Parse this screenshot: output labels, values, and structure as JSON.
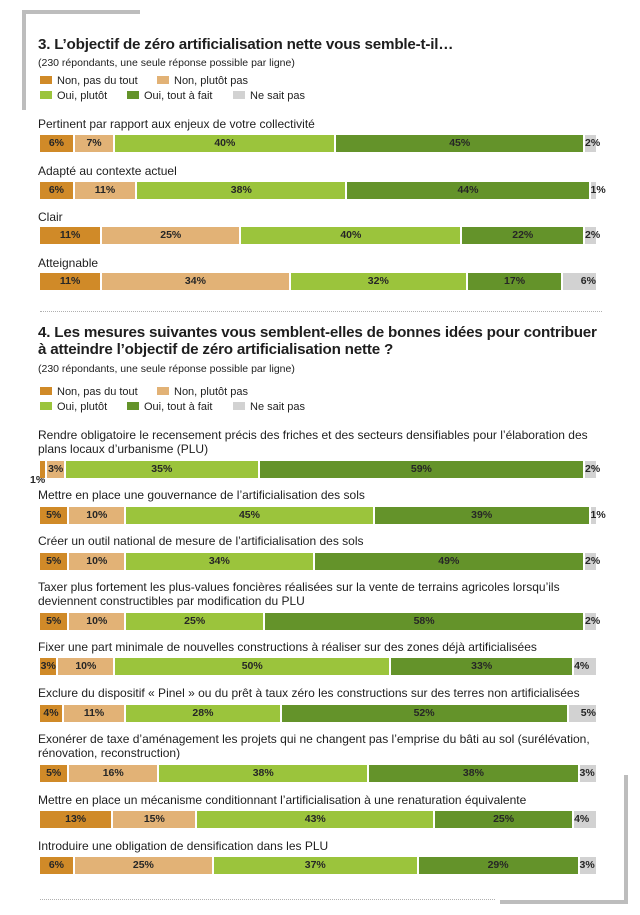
{
  "chart_data": [
    {
      "type": "bar",
      "orientation": "horizontal-stacked-100",
      "title": "3. L’objectif de zéro artificialisation nette vous semble-t-il…",
      "subtitle": "(230 répondants, une seule réponse possible par ligne)",
      "legend": [
        {
          "name": "Non, pas du tout",
          "color": "#d08a28"
        },
        {
          "name": "Non, plutôt pas",
          "color": "#e2b276"
        },
        {
          "name": "Oui, plutôt",
          "color": "#9bc43c"
        },
        {
          "name": "Oui, tout à fait",
          "color": "#64932a"
        },
        {
          "name": "Ne sait pas",
          "color": "#d2d2d2"
        }
      ],
      "rows": [
        {
          "label": "Pertinent par rapport aux enjeux de votre collectivité",
          "values": [
            6,
            7,
            40,
            45,
            2
          ],
          "texts": [
            "6%",
            "7%",
            "40%",
            "45%",
            "2%"
          ]
        },
        {
          "label": "Adapté au contexte actuel",
          "values": [
            6,
            11,
            38,
            44,
            1
          ],
          "texts": [
            "6%",
            "11%",
            "38%",
            "44%",
            "1%"
          ]
        },
        {
          "label": "Clair",
          "values": [
            11,
            25,
            40,
            22,
            2
          ],
          "texts": [
            "11%",
            "25%",
            "40%",
            "22%",
            "2%"
          ]
        },
        {
          "label": "Atteignable",
          "values": [
            11,
            34,
            32,
            17,
            6
          ],
          "texts": [
            "11%",
            "34%",
            "32%",
            "17%",
            "6%"
          ]
        }
      ]
    },
    {
      "type": "bar",
      "orientation": "horizontal-stacked-100",
      "title": "4. Les mesures suivantes vous semblent-elles de bonnes idées pour contribuer à atteindre l’objectif de zéro artificialisation nette ?",
      "subtitle": "(230 répondants, une seule réponse possible par ligne)",
      "legend": [
        {
          "name": "Non, pas du tout",
          "color": "#d08a28"
        },
        {
          "name": "Non, plutôt pas",
          "color": "#e2b276"
        },
        {
          "name": "Oui, plutôt",
          "color": "#9bc43c"
        },
        {
          "name": "Oui, tout à fait",
          "color": "#64932a"
        },
        {
          "name": "Ne sait pas",
          "color": "#d2d2d2"
        }
      ],
      "rows": [
        {
          "label": "Rendre obligatoire le recensement précis des friches et des secteurs densifiables pour l’élaboration des plans locaux d’urbanisme (PLU)",
          "values": [
            1,
            3,
            35,
            59,
            2
          ],
          "texts": [
            "1%",
            "3%",
            "35%",
            "59%",
            "2%"
          ]
        },
        {
          "label": "Mettre en place une gouvernance de l’artificialisation des sols",
          "values": [
            5,
            10,
            45,
            39,
            1
          ],
          "texts": [
            "5%",
            "10%",
            "45%",
            "39%",
            "1%"
          ]
        },
        {
          "label": "Créer un outil national de mesure de l’artificialisation des sols",
          "values": [
            5,
            10,
            34,
            49,
            2
          ],
          "texts": [
            "5%",
            "10%",
            "34%",
            "49%",
            "2%"
          ]
        },
        {
          "label": "Taxer plus fortement les plus-values foncières réalisées sur la vente de terrains agricoles lorsqu’ils deviennent constructibles par modification du PLU",
          "values": [
            5,
            10,
            25,
            58,
            2
          ],
          "texts": [
            "5%",
            "10%",
            "25%",
            "58%",
            "2%"
          ]
        },
        {
          "label": "Fixer une part minimale de nouvelles constructions à réaliser sur des zones déjà artificialisées",
          "values": [
            3,
            10,
            50,
            33,
            4
          ],
          "texts": [
            "3%",
            "10%",
            "50%",
            "33%",
            "4%"
          ]
        },
        {
          "label": "Exclure du dispositif « Pinel » ou du prêt à taux zéro les constructions sur des terres non artificialisées",
          "values": [
            4,
            11,
            28,
            52,
            5
          ],
          "texts": [
            "4%",
            "11%",
            "28%",
            "52%",
            "5%"
          ]
        },
        {
          "label": "Exonérer de taxe d’aménagement les projets qui ne changent pas l’emprise du bâti au sol (surélévation, rénovation, reconstruction)",
          "values": [
            5,
            16,
            38,
            38,
            3
          ],
          "texts": [
            "5%",
            "16%",
            "38%",
            "38%",
            "3%"
          ]
        },
        {
          "label": "Mettre en place un mécanisme conditionnant l’artificialisation à une renaturation équivalente",
          "values": [
            13,
            15,
            43,
            25,
            4
          ],
          "texts": [
            "13%",
            "15%",
            "43%",
            "25%",
            "4%"
          ]
        },
        {
          "label": "Introduire une obligation de densification dans les PLU",
          "values": [
            6,
            25,
            37,
            29,
            3
          ],
          "texts": [
            "6%",
            "25%",
            "37%",
            "29%",
            "3%"
          ]
        }
      ]
    }
  ]
}
